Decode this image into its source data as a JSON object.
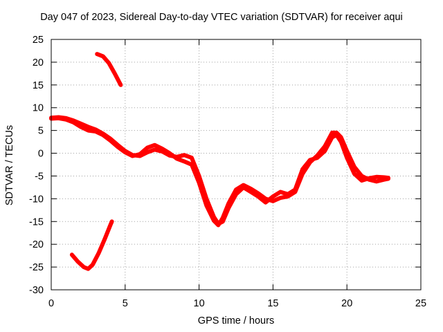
{
  "chart_data": {
    "type": "line",
    "title": "Day 047 of 2023, Sidereal Day-to-day VTEC variation (SDTVAR) for receiver aqui",
    "xlabel": "GPS time / hours",
    "ylabel": "SDTVAR / TECUs",
    "xlim": [
      0,
      25
    ],
    "ylim": [
      -30,
      25
    ],
    "xticks": [
      0,
      5,
      10,
      15,
      20,
      25
    ],
    "yticks": [
      -30,
      -25,
      -20,
      -15,
      -10,
      -5,
      0,
      5,
      10,
      15,
      20,
      25
    ],
    "grid": true,
    "legend": "none",
    "line_color": "#ff0000",
    "series": [
      {
        "name": "main-trace-a",
        "x": [
          0.0,
          0.5,
          1.0,
          1.5,
          2.0,
          2.5,
          3.0,
          3.5,
          4.0,
          4.5,
          5.0,
          5.5,
          6.0,
          6.5,
          7.0,
          7.5,
          8.0,
          8.5,
          9.0,
          9.5,
          10.0,
          10.5,
          11.0,
          11.3,
          11.6,
          12.0,
          12.5,
          13.0,
          13.5,
          14.0,
          14.5,
          15.0,
          15.5,
          16.0,
          16.5,
          17.0,
          17.5,
          18.0,
          18.5,
          19.0,
          19.3,
          19.6,
          20.0,
          20.5,
          21.0,
          21.5,
          22.0,
          22.5,
          22.8
        ],
        "y": [
          7.8,
          7.9,
          7.7,
          7.2,
          6.5,
          5.8,
          5.2,
          4.3,
          3.2,
          1.8,
          0.5,
          -0.4,
          -0.6,
          0.2,
          0.8,
          0.4,
          -0.5,
          -0.8,
          -0.4,
          -1.0,
          -5.0,
          -10.0,
          -14.0,
          -15.5,
          -15.0,
          -12.0,
          -9.0,
          -7.5,
          -8.5,
          -9.5,
          -10.8,
          -9.5,
          -8.5,
          -9.0,
          -8.0,
          -3.5,
          -1.5,
          -1.0,
          0.5,
          3.5,
          4.0,
          2.5,
          -1.0,
          -4.5,
          -6.0,
          -5.5,
          -5.2,
          -5.3,
          -5.4
        ]
      },
      {
        "name": "main-trace-b",
        "x": [
          0.0,
          0.5,
          1.0,
          1.5,
          2.0,
          2.5,
          3.0,
          3.5,
          4.0,
          4.5,
          5.0,
          5.5,
          6.0,
          6.5,
          7.0,
          7.5,
          8.0,
          8.5,
          9.0,
          9.5,
          10.0,
          10.5,
          11.0,
          11.3,
          11.6,
          12.0,
          12.5,
          13.0,
          13.5,
          14.0,
          14.5,
          15.0,
          15.5,
          16.0,
          16.5,
          17.0,
          17.5,
          18.0,
          18.5,
          19.0,
          19.3,
          19.6,
          20.0,
          20.5,
          21.0,
          21.5,
          22.0,
          22.5,
          22.8
        ],
        "y": [
          7.6,
          7.7,
          7.4,
          6.8,
          5.8,
          5.0,
          4.8,
          4.0,
          2.8,
          1.4,
          0.2,
          -0.6,
          -0.2,
          1.2,
          1.8,
          1.0,
          0.0,
          -1.2,
          -1.8,
          -2.5,
          -6.5,
          -11.5,
          -14.8,
          -15.8,
          -14.2,
          -11.0,
          -8.0,
          -7.0,
          -7.8,
          -8.8,
          -10.0,
          -10.5,
          -9.8,
          -9.5,
          -8.5,
          -4.5,
          -2.0,
          -0.5,
          1.5,
          4.5,
          4.5,
          3.5,
          0.5,
          -3.0,
          -5.0,
          -5.8,
          -6.2,
          -5.8,
          -5.6
        ]
      },
      {
        "name": "upper-segment",
        "x": [
          3.1,
          3.5,
          3.9,
          4.3,
          4.7
        ],
        "y": [
          21.8,
          21.3,
          19.8,
          17.5,
          15.0
        ]
      },
      {
        "name": "lower-segment",
        "x": [
          1.4,
          1.8,
          2.2,
          2.5,
          2.8,
          3.2,
          3.6,
          4.0,
          4.1
        ],
        "y": [
          -22.3,
          -23.8,
          -25.0,
          -25.4,
          -24.5,
          -22.0,
          -19.0,
          -15.8,
          -15.0
        ]
      }
    ]
  }
}
